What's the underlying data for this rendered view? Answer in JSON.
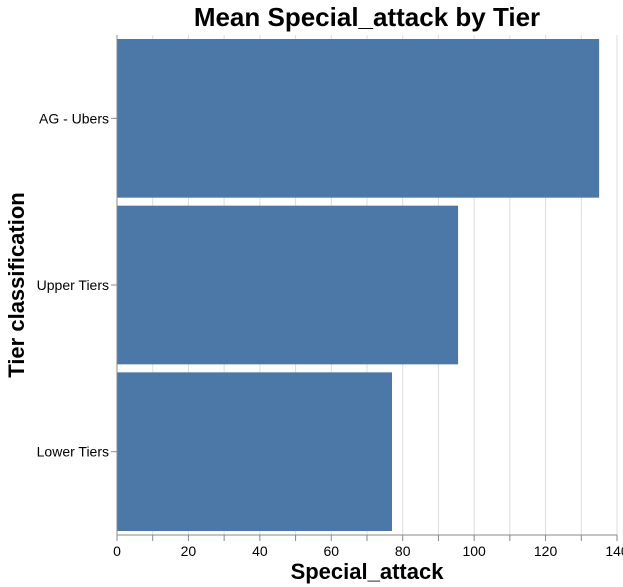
{
  "chart_data": {
    "type": "bar",
    "orientation": "horizontal",
    "title": "Mean Special_attack by Tier",
    "xlabel": "Special_attack",
    "ylabel": "Tier classification",
    "categories": [
      "AG - Ubers",
      "Upper Tiers",
      "Lower Tiers"
    ],
    "values": [
      135,
      95.5,
      77
    ],
    "xlim": [
      0,
      140
    ],
    "x_ticks": [
      0,
      20,
      40,
      60,
      80,
      100,
      120,
      140
    ],
    "grid": true,
    "bar_color": "#4c78a8"
  }
}
